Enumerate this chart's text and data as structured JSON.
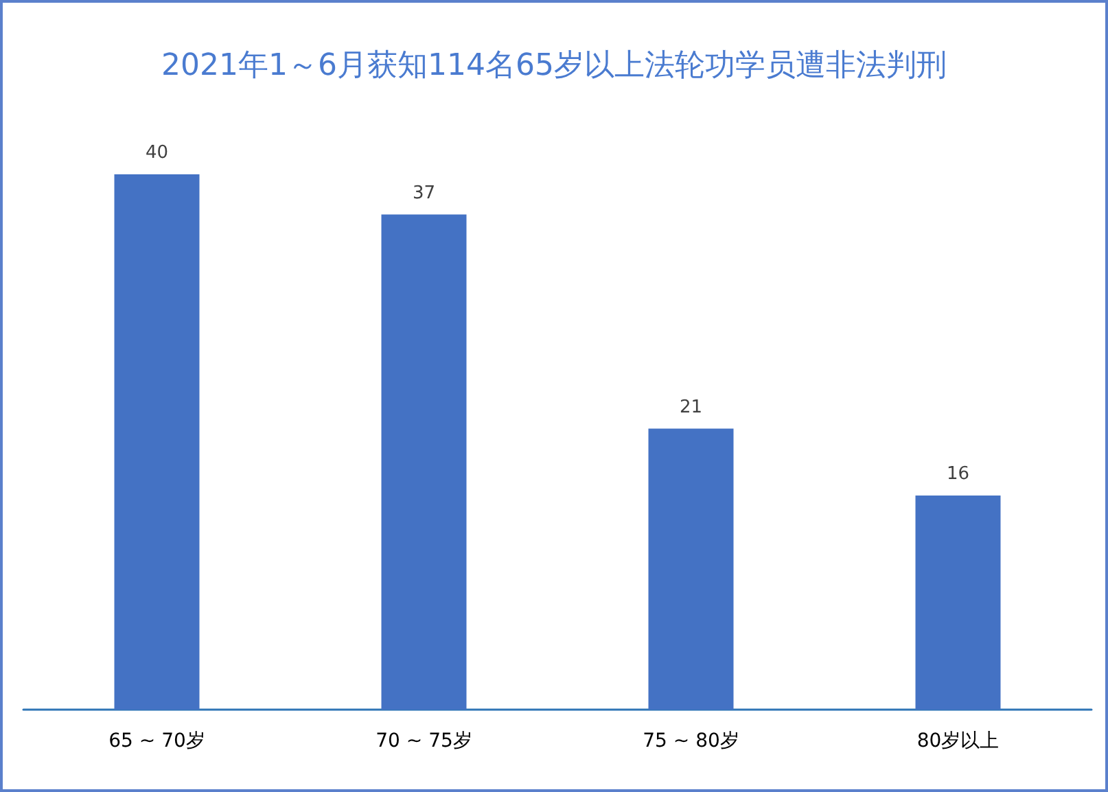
{
  "chart_data": {
    "type": "bar",
    "title": "2021年1～6月获知114名65岁以上法轮功学员遭非法判刑",
    "categories": [
      "65 ~ 70岁",
      "70 ~ 75岁",
      "75 ~ 80岁",
      "80岁以上"
    ],
    "values": [
      40,
      37,
      21,
      16
    ],
    "color": "#4472c4",
    "data_labels": true
  }
}
